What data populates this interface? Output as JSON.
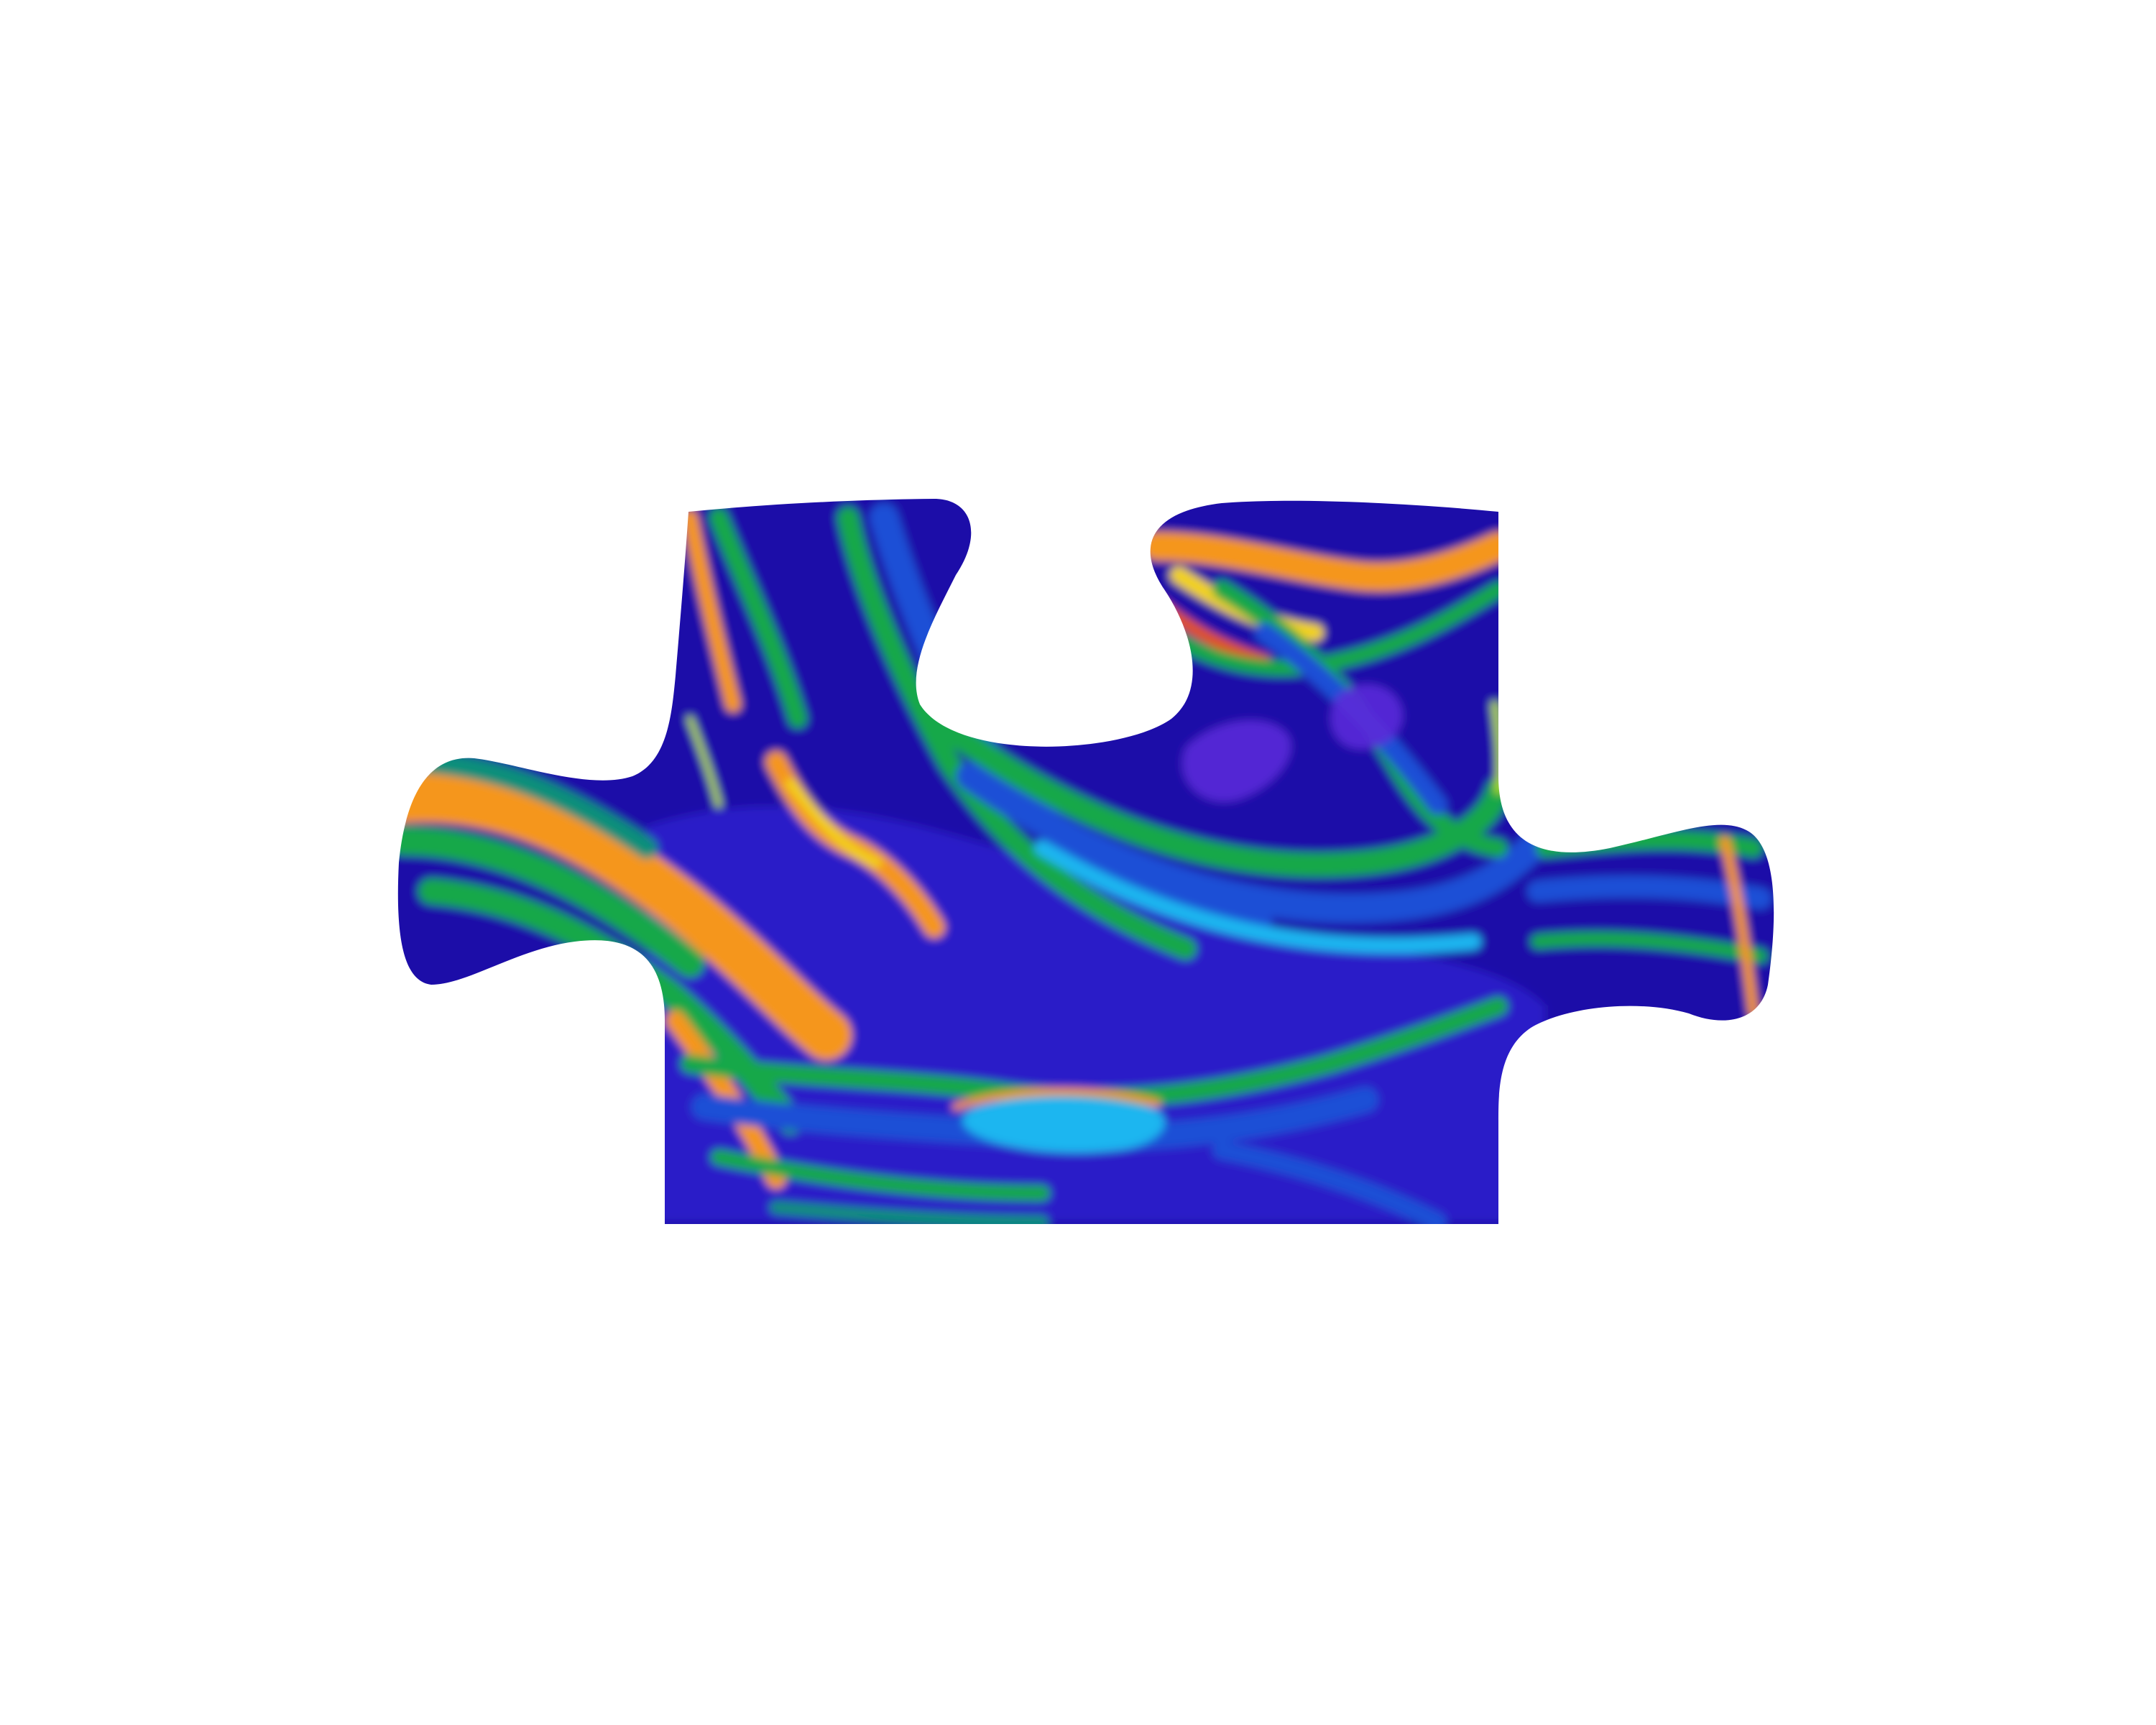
{
  "background_color": "#ffffff",
  "subject": "puzzle-piece",
  "palette": {
    "deep_blue": "#1a0fa8",
    "indigo": "#2a1cc8",
    "royal_blue": "#1e4fd6",
    "cyan": "#1fb6f0",
    "green": "#17a84a",
    "teal": "#0e8f7a",
    "lime": "#b8e21c",
    "yellow": "#f2d21a",
    "orange": "#f5961e",
    "red_orange": "#e2521a",
    "violet": "#5a2ad8"
  }
}
